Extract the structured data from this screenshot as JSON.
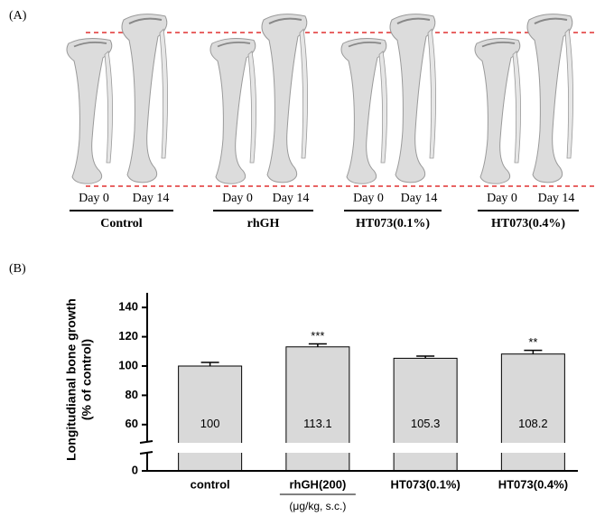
{
  "panel_a": {
    "label": "(A)",
    "groups": [
      {
        "name": "Control",
        "days": [
          "Day 0",
          "Day 14"
        ]
      },
      {
        "name": "rhGH",
        "days": [
          "Day 0",
          "Day 14"
        ]
      },
      {
        "name": "HT073(0.1%)",
        "days": [
          "Day 0",
          "Day 14"
        ]
      },
      {
        "name": "HT073(0.4%)",
        "days": [
          "Day 0",
          "Day 14"
        ]
      }
    ]
  },
  "chart_data": {
    "type": "bar",
    "panel_label": "(B)",
    "ylabel": [
      "Longitudianal bone growth",
      "(% of control)"
    ],
    "categories": [
      "control",
      "rhGH(200)",
      "HT073(0.1%)",
      "HT073(0.4%)"
    ],
    "category_note": {
      "category": 1,
      "text": "(μg/kg, s.c.)"
    },
    "values": [
      100,
      113.1,
      105.3,
      108.2
    ],
    "errors": [
      2.5,
      2,
      1.5,
      2.5
    ],
    "annotations": [
      null,
      "***",
      null,
      "**"
    ],
    "color": "#d9d9d9",
    "ylim": [
      0,
      150
    ],
    "yticks": [
      0,
      60,
      80,
      100,
      120,
      140
    ],
    "axis_break": [
      5,
      50
    ]
  }
}
